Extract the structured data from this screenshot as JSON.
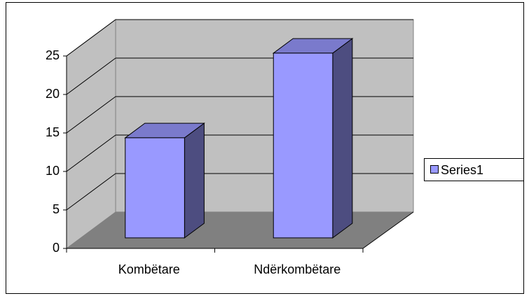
{
  "chart_data": {
    "type": "bar",
    "categories": [
      "Kombëtare",
      "Ndërkombëtare"
    ],
    "series": [
      {
        "name": "Series1",
        "color": "#9999ff",
        "values": [
          13,
          24
        ]
      }
    ],
    "ylim": [
      0,
      25
    ],
    "yticks": [
      0,
      5,
      10,
      15,
      20,
      25
    ],
    "grid": true,
    "legend": "right"
  }
}
